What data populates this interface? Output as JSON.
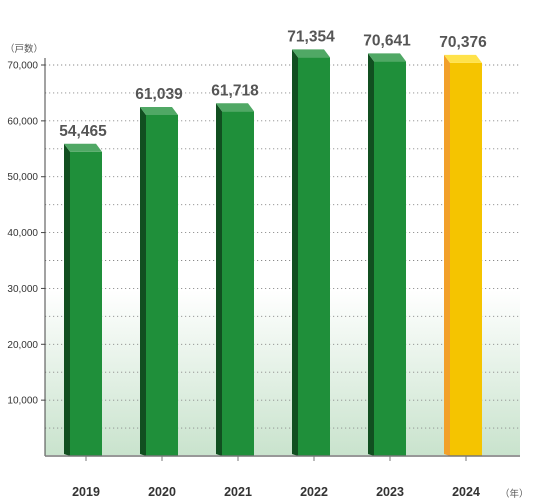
{
  "chart_data": {
    "type": "bar",
    "categories": [
      "2019",
      "2020",
      "2021",
      "2022",
      "2023",
      "2024"
    ],
    "values": [
      54465,
      61039,
      61718,
      71354,
      70641,
      70376
    ],
    "value_labels": [
      "54,465",
      "61,039",
      "61,718",
      "71,354",
      "70,641",
      "70,376"
    ],
    "ylabel": "（戸数）",
    "xlabel": "（年）",
    "ylim": [
      0,
      75000
    ],
    "y_ticks": [
      10000,
      20000,
      30000,
      40000,
      50000,
      60000,
      70000
    ],
    "y_tick_labels": [
      "10,000",
      "20,000",
      "30,000",
      "40,000",
      "50,000",
      "60,000",
      "70,000"
    ],
    "grid": "dotted horizontal",
    "bar_colors": [
      "#1f8f3a",
      "#1f8f3a",
      "#1f8f3a",
      "#1f8f3a",
      "#1f8f3a",
      "#f5c400"
    ],
    "background_gradient": [
      "#ffffff",
      "#c9e3cd"
    ]
  }
}
